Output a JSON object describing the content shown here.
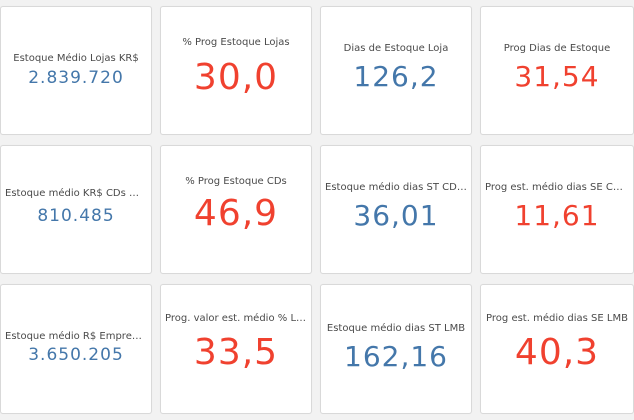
{
  "colors": {
    "blue": "#4477aa",
    "red": "#f0412f"
  },
  "kpis": [
    {
      "title": "Estoque Médio Lojas KR$",
      "value": "2.839.720"
    },
    {
      "title": "% Prog Estoque Lojas",
      "value": "30,0"
    },
    {
      "title": "Dias de Estoque Loja",
      "value": "126,2"
    },
    {
      "title": "Prog Dias de Estoque",
      "value": "31,54"
    },
    {
      "title": "Estoque médio KR$ CDs + Pla...",
      "value": "810.485"
    },
    {
      "title": "% Prog Estoque CDs",
      "value": "46,9"
    },
    {
      "title": "Estoque médio dias ST CDs + ...",
      "value": "36,01"
    },
    {
      "title": "Prog est. médio dias SE CDs +...",
      "value": "11,61"
    },
    {
      "title": "Estoque médio R$ Empresa L...",
      "value": "3.650.205"
    },
    {
      "title": "Prog. valor est. médio % LMB",
      "value": "33,5"
    },
    {
      "title": "Estoque médio dias ST LMB",
      "value": "162,16"
    },
    {
      "title": "Prog est. médio dias SE LMB",
      "value": "40,3"
    }
  ]
}
